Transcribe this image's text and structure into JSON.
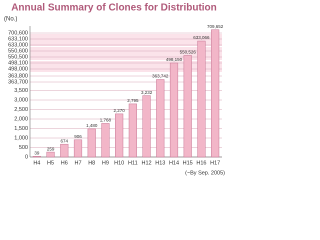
{
  "chart_data": {
    "type": "bar",
    "title": "Annual Summary of Clones for Distribution",
    "ylabel": "(No.)",
    "note": "(~By Sep. 2005)",
    "categories": [
      "H4",
      "H5",
      "H6",
      "H7",
      "H8",
      "H9",
      "H10",
      "H11",
      "H12",
      "H13",
      "H14",
      "H15",
      "H16",
      "H17"
    ],
    "values": [
      39,
      259,
      674,
      906,
      1480,
      1768,
      2270,
      2795,
      3232,
      363742,
      498150,
      550526,
      633066,
      709652
    ],
    "value_labels": [
      "39",
      "259",
      "674",
      "906",
      "1,480",
      "1,768",
      "2,270",
      "2,795",
      "3,232",
      "363,742",
      "498,150",
      "550,526",
      "633,066",
      "709,652"
    ],
    "color": "#f2b6c8",
    "ylim": [
      0,
      720000
    ],
    "yticks": [
      0,
      500,
      {
        "value": 1000,
        "label": "1,000"
      },
      {
        "value": 1500,
        "label": "1,500"
      },
      {
        "value": 2000,
        "label": "2,000"
      },
      {
        "value": 2500,
        "label": "2,500"
      },
      {
        "value": 3000,
        "label": "3,000"
      },
      {
        "value": 3500,
        "label": "3,500"
      },
      {
        "value": 363700,
        "label": "363,700"
      },
      {
        "value": 363800,
        "label": "363,800"
      },
      {
        "value": 498000,
        "label": "498,000"
      },
      {
        "value": 498100,
        "label": "498,100"
      },
      {
        "value": 550500,
        "label": "550,500"
      },
      {
        "value": 550600,
        "label": "550,600"
      },
      {
        "value": 633000,
        "label": "633,000"
      },
      {
        "value": 633100,
        "label": "633,100"
      },
      {
        "value": 700600,
        "label": "700,600"
      }
    ],
    "grid": true
  }
}
